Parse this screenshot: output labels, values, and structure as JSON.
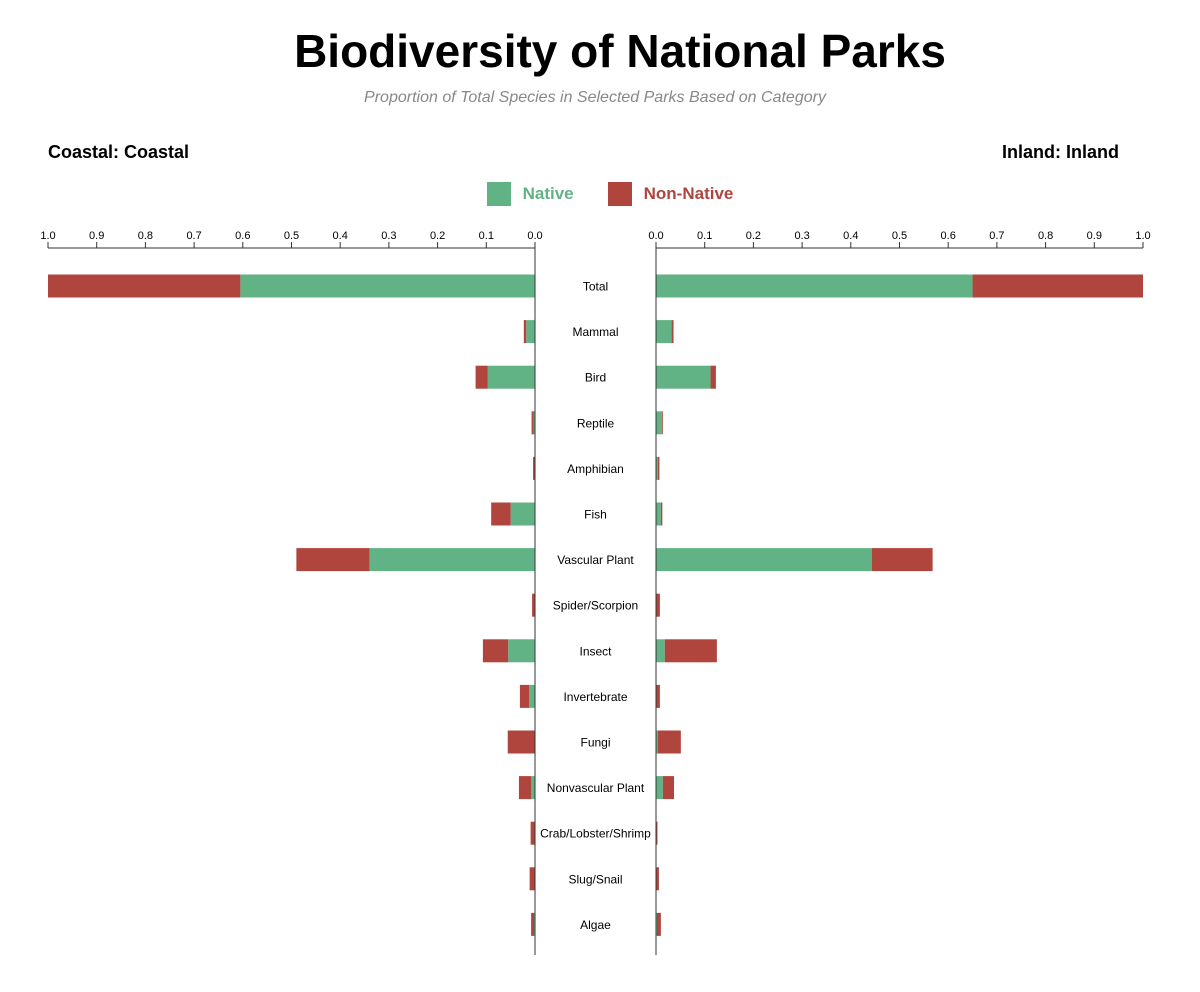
{
  "title": "Biodiversity of National Parks",
  "subtitle": "Proportion of Total Species in Selected Parks Based on Category",
  "left_label": "Coastal: Coastal",
  "right_label": "Inland: Inland",
  "legend": [
    {
      "name": "Native",
      "color": "#61b386"
    },
    {
      "name": "Non-Native",
      "color": "#b0453e"
    }
  ],
  "chart_data": {
    "type": "bar",
    "orientation": "horizontal-butterfly",
    "stacked": true,
    "xlim": [
      0,
      1.0
    ],
    "ticks": [
      "0.0",
      "0.1",
      "0.2",
      "0.3",
      "0.4",
      "0.5",
      "0.6",
      "0.7",
      "0.8",
      "0.9",
      "1.0"
    ],
    "categories": [
      "Total",
      "Mammal",
      "Bird",
      "Reptile",
      "Amphibian",
      "Fish",
      "Vascular Plant",
      "Spider/Scorpion",
      "Insect",
      "Invertebrate",
      "Fungi",
      "Nonvascular Plant",
      "Crab/Lobster/Shrimp",
      "Slug/Snail",
      "Algae"
    ],
    "panels": [
      {
        "name": "Coastal",
        "side": "left",
        "series": [
          {
            "name": "Native",
            "values": [
              0.605,
              0.018,
              0.097,
              0.003,
              0.001,
              0.05,
              0.34,
              0.001,
              0.055,
              0.012,
              0.001,
              0.008,
              0.001,
              0.001,
              0.002
            ]
          },
          {
            "name": "Non-Native",
            "values": [
              0.395,
              0.005,
              0.025,
              0.004,
              0.003,
              0.04,
              0.15,
              0.005,
              0.052,
              0.019,
              0.055,
              0.025,
              0.008,
              0.01,
              0.006
            ]
          }
        ]
      },
      {
        "name": "Inland",
        "side": "right",
        "series": [
          {
            "name": "Native",
            "values": [
              0.65,
              0.032,
              0.112,
              0.012,
              0.004,
              0.01,
              0.443,
              0.001,
              0.018,
              0.001,
              0.004,
              0.014,
              0.001,
              0.001,
              0.002
            ]
          },
          {
            "name": "Non-Native",
            "values": [
              0.35,
              0.004,
              0.011,
              0.002,
              0.003,
              0.003,
              0.125,
              0.007,
              0.107,
              0.007,
              0.047,
              0.023,
              0.002,
              0.005,
              0.008
            ]
          }
        ]
      }
    ]
  }
}
